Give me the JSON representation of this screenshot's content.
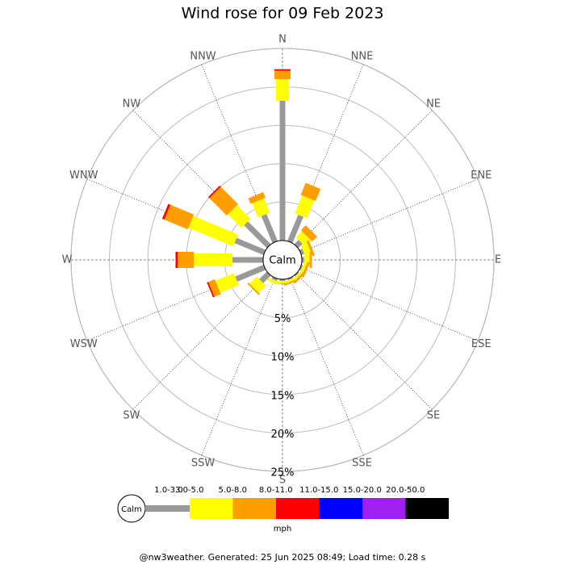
{
  "chart_data": {
    "type": "wind_rose",
    "title": "Wind rose for 09 Feb 2023",
    "categories": [
      "N",
      "NNE",
      "NE",
      "ENE",
      "E",
      "ESE",
      "SE",
      "SSE",
      "S",
      "SSW",
      "SW",
      "WSW",
      "W",
      "WNW",
      "NW",
      "NNW"
    ],
    "rlim": [
      0,
      25
    ],
    "rticks": [
      {
        "value": 5,
        "label": "5%"
      },
      {
        "value": 10,
        "label": "10%"
      },
      {
        "value": 15,
        "label": "15%"
      },
      {
        "value": 20,
        "label": "20%"
      },
      {
        "value": 25,
        "label": "25%"
      }
    ],
    "calm_label": "Calm",
    "legend_unit": "mph",
    "series": [
      {
        "name": "1.0-3.0",
        "color": "#999999",
        "values": [
          18.2,
          3.7,
          0.8,
          0.4,
          0.3,
          0.2,
          0.2,
          0.2,
          0.2,
          0.3,
          1.4,
          4.0,
          4.0,
          4.1,
          4.2,
          3.8
        ]
      },
      {
        "name": "3.0-5.0",
        "color": "#ffff00",
        "values": [
          2.8,
          2.5,
          1.1,
          0.9,
          0.7,
          0.4,
          0.3,
          0.3,
          0.3,
          0.4,
          1.3,
          2.6,
          5.0,
          6.3,
          2.5,
          2.0
        ]
      },
      {
        "name": "5.0-8.0",
        "color": "#ff9e00",
        "values": [
          1.1,
          1.7,
          0.9,
          0.3,
          0.3,
          0.3,
          0.3,
          0.2,
          0.1,
          0,
          0.2,
          0.9,
          2.1,
          3.3,
          3.2,
          0.8
        ]
      },
      {
        "name": "8.0-11.0",
        "color": "#ff0000",
        "values": [
          0.2,
          0,
          0,
          0,
          0,
          0,
          0,
          0,
          0,
          0,
          0,
          0.2,
          0.3,
          0.3,
          0.2,
          0
        ]
      },
      {
        "name": "11.0-15.0",
        "color": "#0000ff",
        "values": [
          0,
          0,
          0,
          0,
          0,
          0,
          0,
          0,
          0,
          0,
          0,
          0,
          0,
          0,
          0,
          0
        ]
      },
      {
        "name": "15.0-20.0",
        "color": "#a020f0",
        "values": [
          0,
          0,
          0,
          0,
          0,
          0,
          0,
          0,
          0,
          0,
          0,
          0,
          0,
          0,
          0,
          0
        ]
      },
      {
        "name": "20.0-50.0",
        "color": "#000000",
        "values": [
          0,
          0,
          0,
          0,
          0,
          0,
          0,
          0,
          0,
          0,
          0,
          0,
          0,
          0,
          0,
          0
        ]
      }
    ]
  },
  "footer": "@nw3weather. Generated: 25 Jun 2025 08:49; Load time: 0.28 s"
}
